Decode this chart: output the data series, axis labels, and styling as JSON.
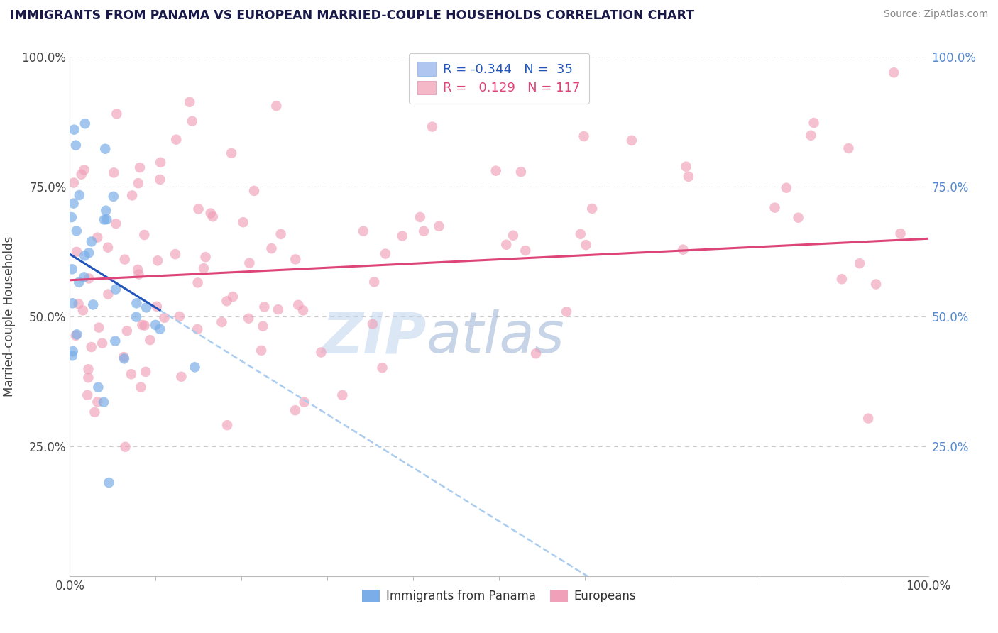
{
  "title": "IMMIGRANTS FROM PANAMA VS EUROPEAN MARRIED-COUPLE HOUSEHOLDS CORRELATION CHART",
  "source_text": "Source: ZipAtlas.com",
  "ylabel": "Married-couple Households",
  "series1_color": "#7baee8",
  "series2_color": "#f0a0b8",
  "line1_color": "#2255bb",
  "line2_color": "#dd4477",
  "line_ext_color": "#aaccee",
  "watermark": "ZIPAtlas",
  "watermark_color_zip": "#c8d8f0",
  "watermark_color_atlas": "#88aacc",
  "background_color": "#ffffff",
  "title_color": "#1a1a4a",
  "R1": -0.344,
  "N1": 35,
  "R2": 0.129,
  "N2": 117,
  "legend_R1_color": "#2255bb",
  "legend_R2_color": "#dd4477",
  "legend_patch1_color": "#aec6f0",
  "legend_patch2_color": "#f4b8c8",
  "xlim": [
    0,
    100
  ],
  "ylim": [
    0,
    100
  ],
  "figsize": [
    14.06,
    8.92
  ],
  "dpi": 100,
  "blue_line_y0": 62,
  "blue_line_y_at_x35": 26,
  "pink_line_y0": 57,
  "pink_line_y100": 65
}
